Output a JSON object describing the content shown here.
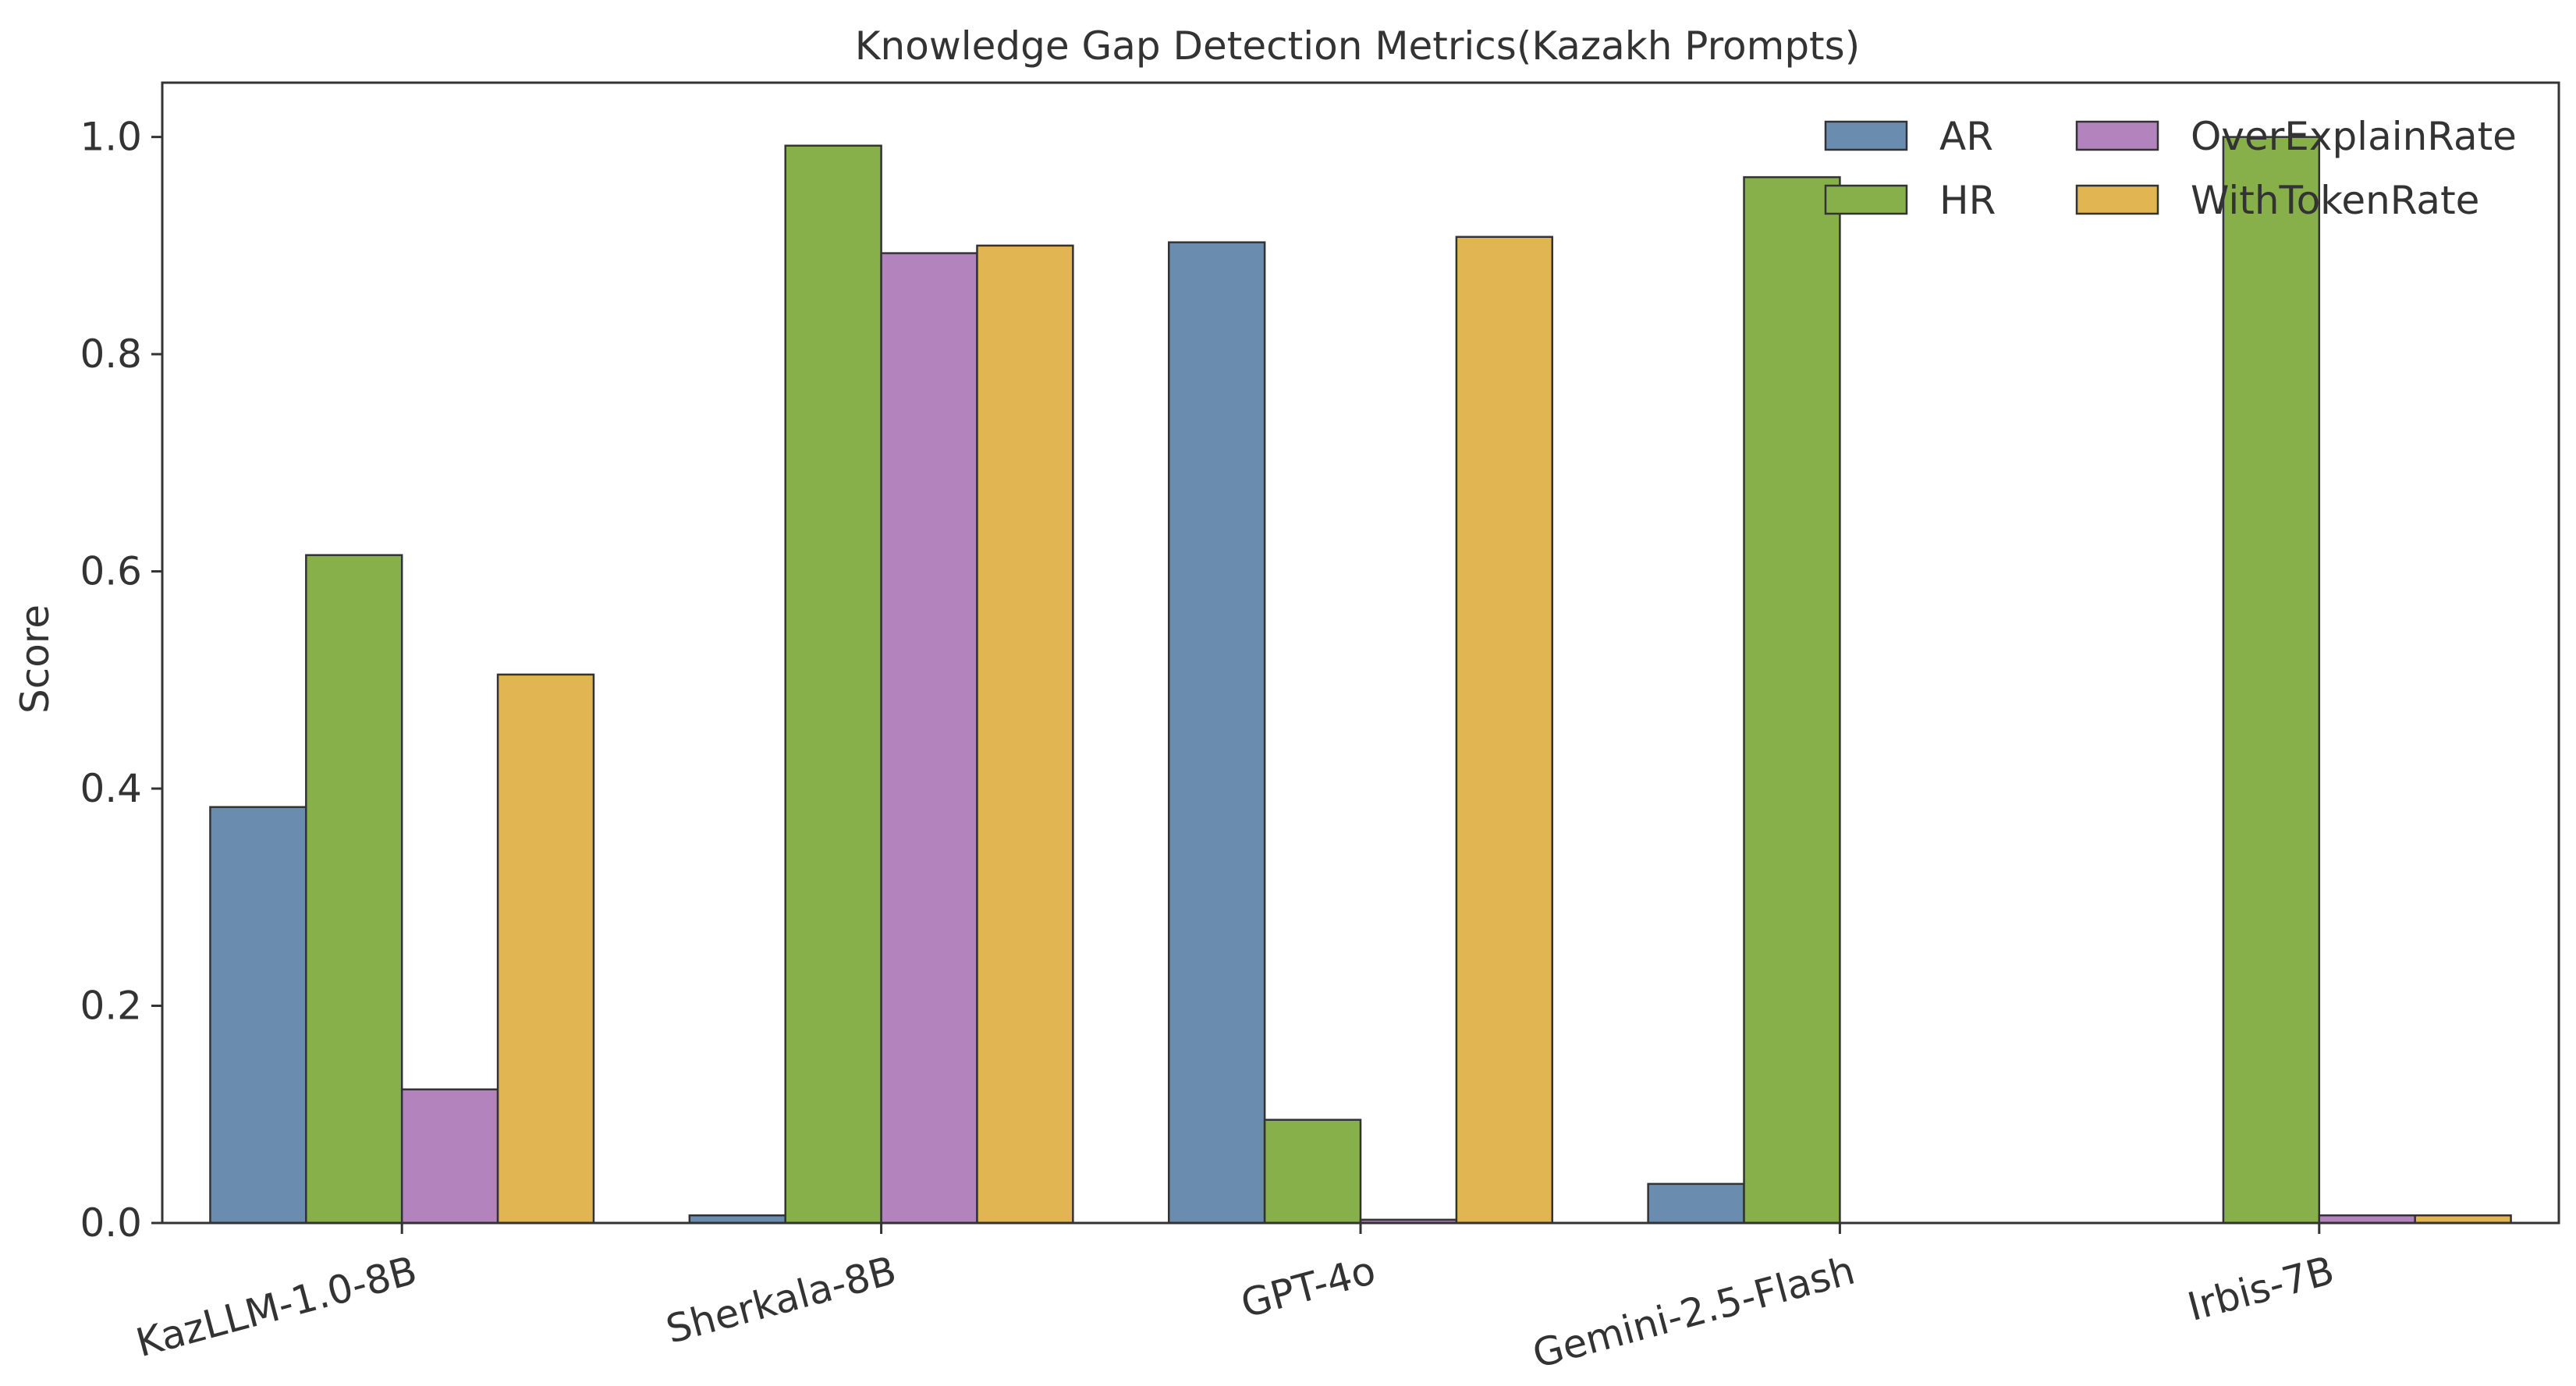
{
  "chart_data": {
    "type": "bar",
    "title": "Knowledge Gap Detection Metrics(Kazakh Prompts)",
    "xlabel": "",
    "ylabel": "Score",
    "ylim": [
      0,
      1.05
    ],
    "yticks": [
      0.0,
      0.2,
      0.4,
      0.6,
      0.8,
      1.0
    ],
    "ytick_labels": [
      "0.0",
      "0.2",
      "0.4",
      "0.6",
      "0.8",
      "1.0"
    ],
    "grid": false,
    "legend_position": "top-right",
    "categories": [
      "KazLLM-1.0-8B",
      "Sherkala-8B",
      "GPT-4o",
      "Gemini-2.5-Flash",
      "Irbis-7B"
    ],
    "series": [
      {
        "name": "AR",
        "color": "#6a8caf",
        "values": [
          0.383,
          0.007,
          0.903,
          0.036,
          0.0
        ]
      },
      {
        "name": "HR",
        "color": "#87b04a",
        "values": [
          0.615,
          0.992,
          0.095,
          0.963,
          1.0
        ]
      },
      {
        "name": "OverExplainRate",
        "color": "#b283bd",
        "values": [
          0.123,
          0.893,
          0.003,
          0.0,
          0.007
        ]
      },
      {
        "name": "WithTokenRate",
        "color": "#e2b553",
        "values": [
          0.505,
          0.9,
          0.908,
          0.0,
          0.007
        ]
      }
    ]
  }
}
